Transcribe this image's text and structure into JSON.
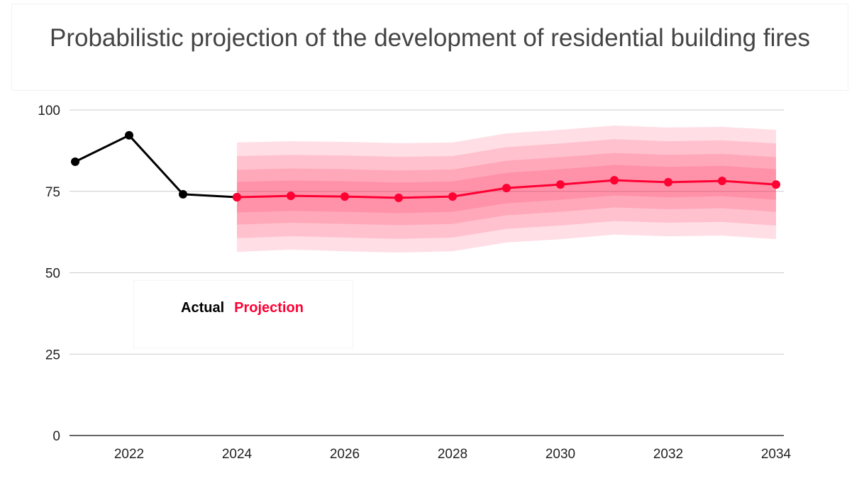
{
  "chart_data": {
    "type": "line",
    "title": "Probabilistic projection of the development of residential building fires",
    "xlabel": "",
    "ylabel": "",
    "xlim": [
      2021,
      2034
    ],
    "ylim": [
      0,
      100
    ],
    "x_ticks": [
      "2022",
      "2024",
      "2026",
      "2028",
      "2030",
      "2032",
      "2034"
    ],
    "y_ticks": [
      "0",
      "25",
      "50",
      "75",
      "100"
    ],
    "grid": true,
    "legend": "inside-left",
    "series": [
      {
        "name": "Actual",
        "color": "#000000",
        "x": [
          2021,
          2022,
          2023,
          2024
        ],
        "values": [
          84.1,
          92.2,
          74.1,
          73.2
        ]
      },
      {
        "name": "Projection",
        "color": "#ff0033",
        "x": [
          2024,
          2025,
          2026,
          2027,
          2028,
          2029,
          2030,
          2031,
          2032,
          2033,
          2034
        ],
        "values": [
          73.2,
          73.6,
          73.4,
          73.0,
          73.4,
          76.0,
          77.1,
          78.4,
          77.8,
          78.2,
          77.1
        ],
        "upper": [
          90.0,
          90.4,
          90.2,
          89.8,
          90.0,
          92.8,
          93.9,
          95.2,
          94.6,
          94.8,
          93.9
        ],
        "lower": [
          56.4,
          57.1,
          56.6,
          56.2,
          56.6,
          59.3,
          60.3,
          61.7,
          61.2,
          61.4,
          60.3
        ]
      }
    ]
  }
}
